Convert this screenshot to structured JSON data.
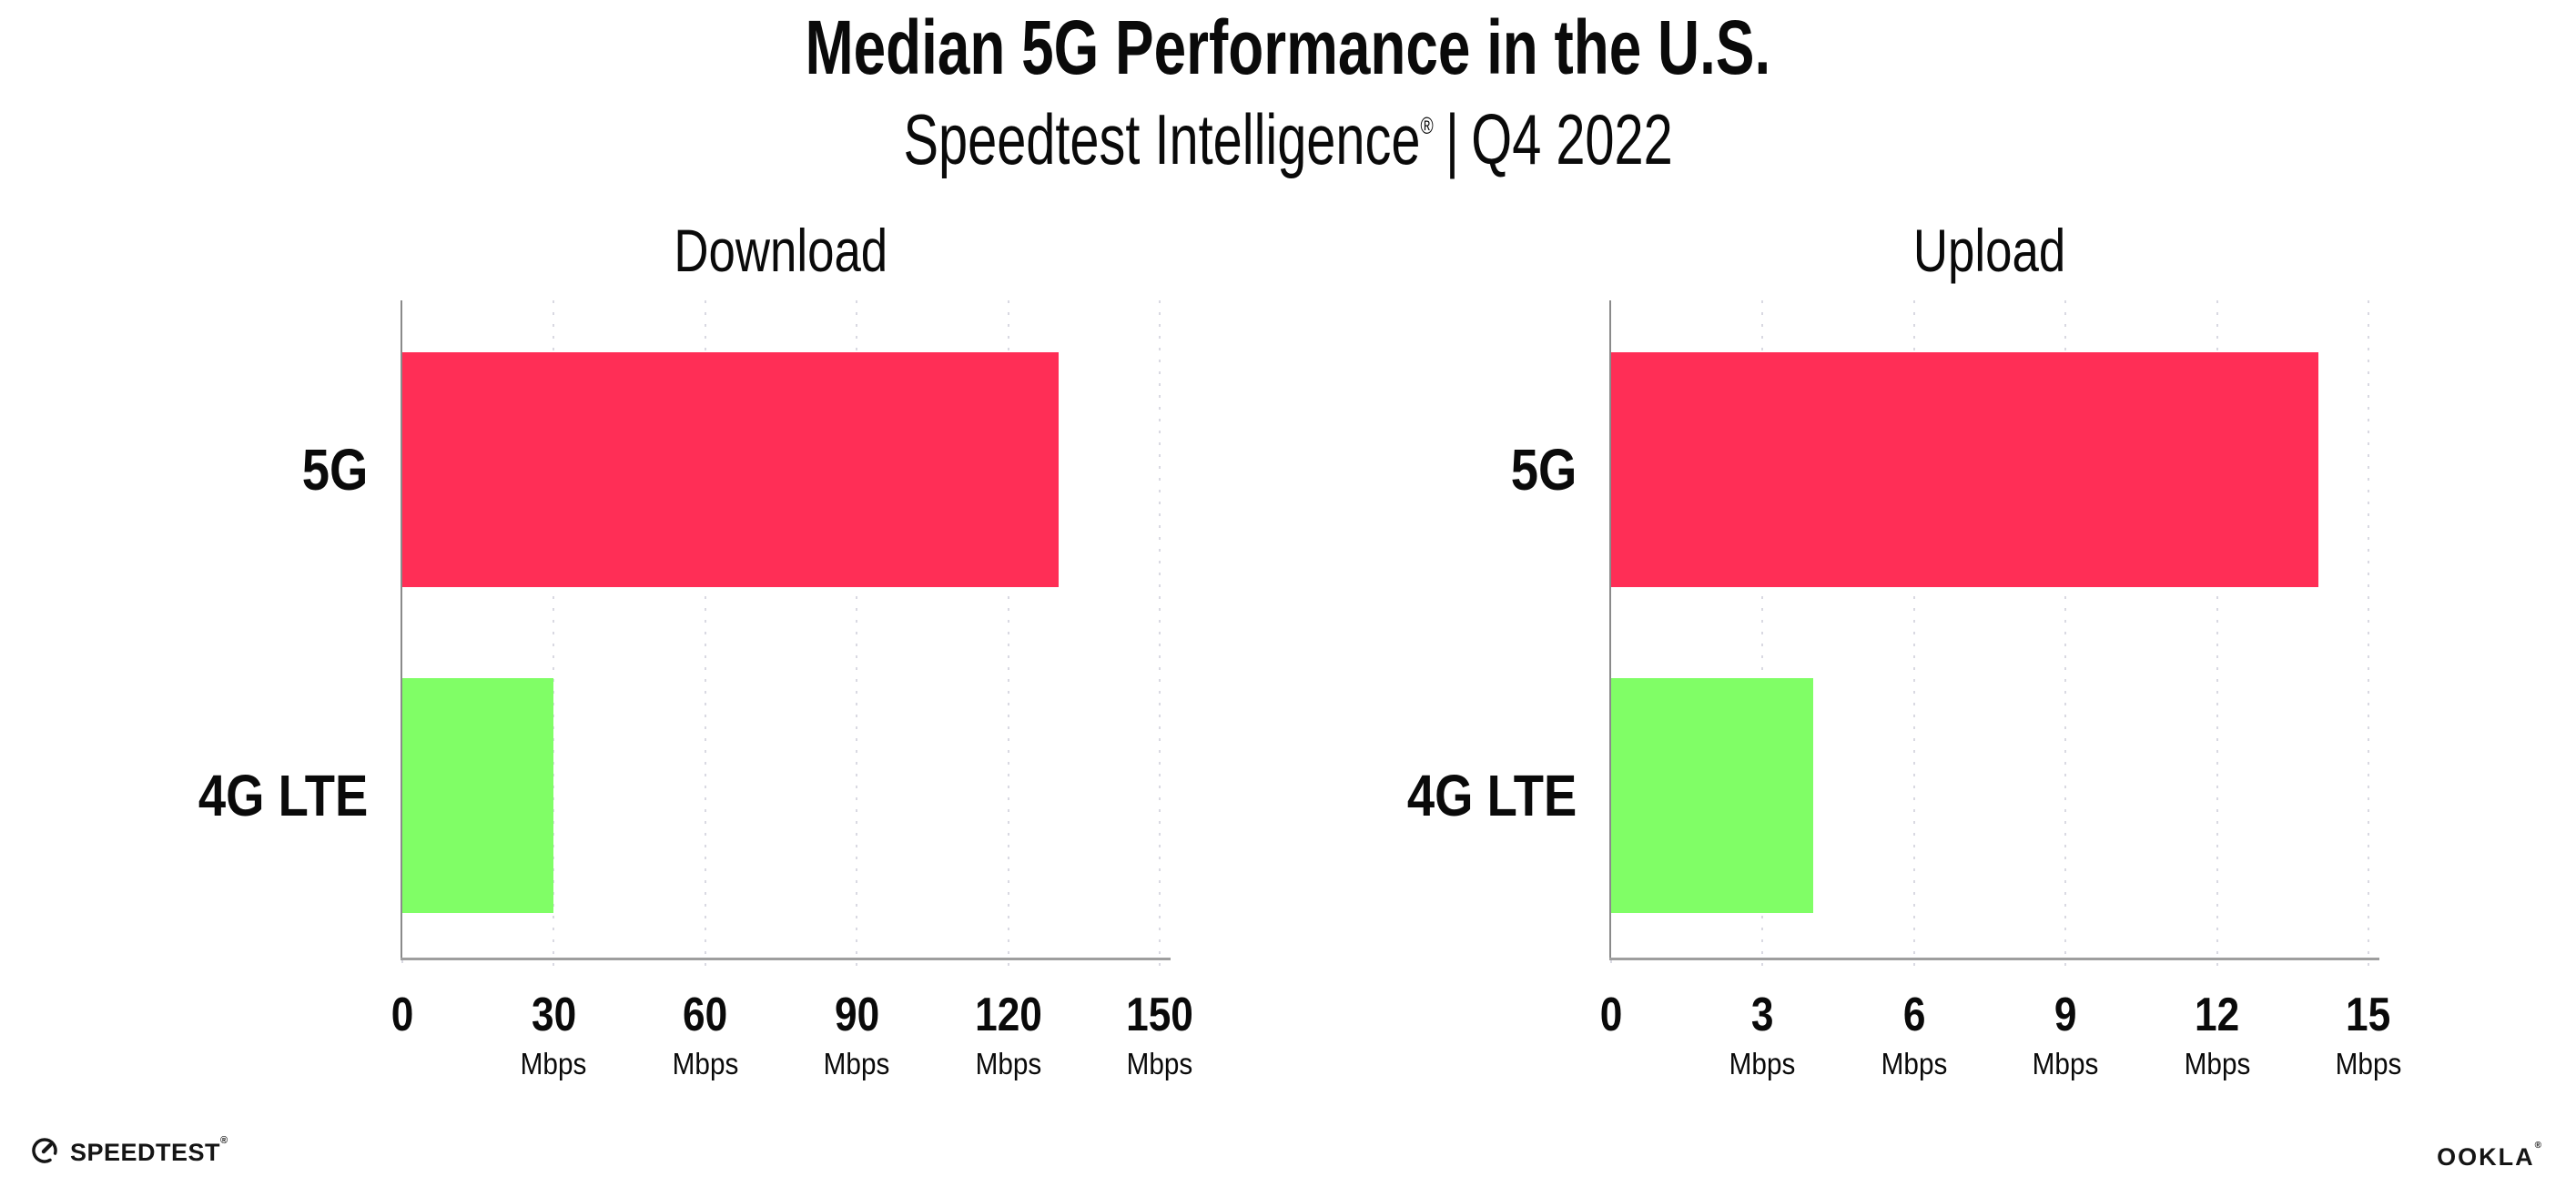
{
  "header": {
    "title": "Median 5G Performance in the U.S.",
    "subtitle_brand": "Speedtest Intelligence",
    "registered_mark": "®",
    "separator": "|",
    "subtitle_period": "Q4 2022"
  },
  "chart_data": [
    {
      "type": "bar",
      "orientation": "horizontal",
      "title": "Download",
      "categories": [
        "5G",
        "4G LTE"
      ],
      "values": [
        130,
        30
      ],
      "unit": "Mbps",
      "xlim": [
        0,
        150
      ],
      "xticks": [
        0,
        30,
        60,
        90,
        120,
        150
      ],
      "bar_colors": [
        "#ff2e56",
        "#80fe66"
      ],
      "grid": "dotted-vertical",
      "legend_position": "none"
    },
    {
      "type": "bar",
      "orientation": "horizontal",
      "title": "Upload",
      "categories": [
        "5G",
        "4G LTE"
      ],
      "values": [
        14,
        4
      ],
      "unit": "Mbps",
      "xlim": [
        0,
        15
      ],
      "xticks": [
        0,
        3,
        6,
        9,
        12,
        15
      ],
      "bar_colors": [
        "#ff2e56",
        "#80fe66"
      ],
      "grid": "dotted-vertical",
      "legend_position": "none"
    }
  ],
  "footer": {
    "speedtest_label": "SPEEDTEST",
    "speedtest_mark": "®",
    "ookla_label": "OOKLA",
    "ookla_mark": "®"
  },
  "colors": {
    "bar_5g": "#ff2e56",
    "bar_4g_lte": "#80fe66",
    "axis": "#9e9e9e",
    "gridline": "#d9d9e2",
    "text": "#0a0a0a"
  }
}
